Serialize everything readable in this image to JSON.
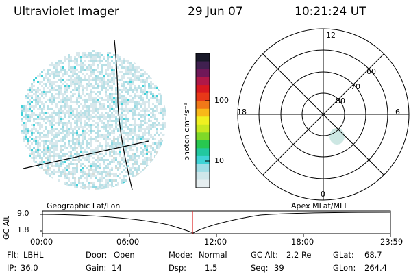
{
  "header": {
    "title": "Ultraviolet Imager",
    "date": "29 Jun 07",
    "time": "10:21:24 UT"
  },
  "colorbar": {
    "label": "photon cm⁻²s⁻¹",
    "ticks": [
      "100",
      "10"
    ],
    "colors": [
      "#e6eef0",
      "#cfe6ea",
      "#9fdde6",
      "#3fd3d6",
      "#22c8a0",
      "#28c850",
      "#7fd828",
      "#c8e820",
      "#f0f020",
      "#f8b818",
      "#f07818",
      "#e83818",
      "#d81820",
      "#b01848",
      "#701858",
      "#402050",
      "#181828"
    ]
  },
  "image_left": {
    "description": "",
    "pixel_colors": [
      "#d8e8ec",
      "#b8e0e6",
      "#8fd8e2",
      "#3fd0d8",
      "#d4dcd8"
    ]
  },
  "polar": {
    "mlt_labels": [
      "12",
      "18",
      "6",
      "0"
    ],
    "lat_labels": [
      "60",
      "70",
      "80"
    ],
    "spot_color": "#c8e4e0"
  },
  "timeline": {
    "left_title": "Geographic Lat/Lon",
    "right_title": "Apex MLat/MLT",
    "axis_label": "GC Alt",
    "y_ticks": [
      "9.0",
      "1.8"
    ],
    "x_ticks": [
      "00:00",
      "06:00",
      "12:00",
      "18:00",
      "23:59"
    ],
    "marker_color": "#dd2222"
  },
  "status": {
    "flt_label": "Flt:",
    "flt_value": "LBHL",
    "ip_label": "IP:",
    "ip_value": "36.0",
    "door_label": "Door:",
    "door_value": "Open",
    "gain_label": "Gain:",
    "gain_value": "14",
    "mode_label": "Mode:",
    "mode_value": "Normal",
    "dsp_label": "Dsp:",
    "dsp_value": "1.5",
    "gcalt_label": "GC Alt:",
    "gcalt_value": "2.2 Re",
    "seq_label": "Seq:",
    "seq_value": "39",
    "glat_label": "GLat:",
    "glat_value": "68.7",
    "glon_label": "GLon:",
    "glon_value": "264.4"
  }
}
